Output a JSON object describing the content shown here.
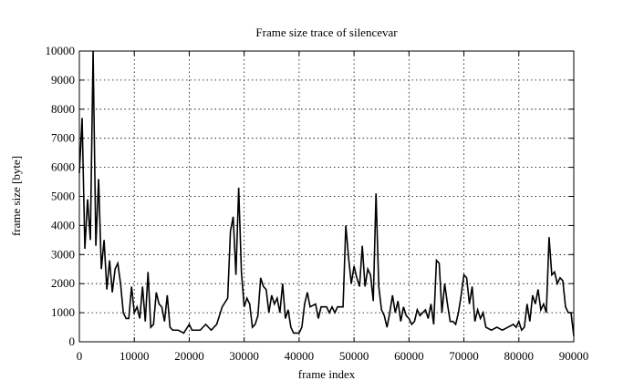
{
  "chart_data": {
    "type": "line",
    "title": "Frame size trace of silencevar",
    "x_label": "frame index",
    "y_label": "frame size [byte]",
    "x": [
      0,
      500,
      1000,
      1500,
      2000,
      2500,
      3000,
      3500,
      4000,
      4500,
      5000,
      5500,
      6000,
      6500,
      7000,
      7500,
      8000,
      8500,
      9000,
      9500,
      10000,
      10500,
      11000,
      11500,
      12000,
      12500,
      13000,
      13500,
      14000,
      14500,
      15000,
      15500,
      16000,
      16500,
      17000,
      18000,
      19000,
      20000,
      20500,
      21000,
      22000,
      23000,
      24000,
      25000,
      26000,
      27000,
      27500,
      28000,
      28500,
      29000,
      29500,
      30000,
      30500,
      31000,
      31500,
      32000,
      32500,
      33000,
      33500,
      34000,
      34500,
      35000,
      35500,
      36000,
      36500,
      37000,
      37500,
      38000,
      38500,
      39000,
      40000,
      40500,
      41000,
      41500,
      42000,
      43000,
      43500,
      44000,
      45000,
      45500,
      46000,
      46500,
      47000,
      48000,
      48500,
      49000,
      49500,
      50000,
      50500,
      51000,
      51500,
      52000,
      52500,
      53000,
      53500,
      54000,
      54500,
      55000,
      55500,
      56000,
      56500,
      57000,
      57500,
      58000,
      58500,
      59000,
      59500,
      60000,
      60500,
      61000,
      61500,
      62000,
      62500,
      63000,
      63500,
      64000,
      64500,
      65000,
      65500,
      66000,
      66500,
      67000,
      67500,
      68000,
      68500,
      69000,
      69500,
      70000,
      70500,
      71000,
      71500,
      72000,
      72500,
      73000,
      73500,
      74000,
      75000,
      76000,
      77000,
      78000,
      79000,
      79500,
      80000,
      80500,
      81000,
      81500,
      82000,
      82500,
      83000,
      83500,
      84000,
      84500,
      85000,
      85500,
      86000,
      86500,
      87000,
      87500,
      88000,
      88500,
      89000,
      89500,
      90000
    ],
    "series": [
      {
        "name": "silencevar",
        "color": "#000000",
        "values": [
          5800,
          7700,
          3200,
          4900,
          3500,
          10000,
          3300,
          5600,
          2500,
          3500,
          1800,
          2800,
          1700,
          2500,
          2700,
          2000,
          1000,
          800,
          800,
          1900,
          1000,
          1200,
          800,
          1900,
          700,
          2400,
          500,
          600,
          1700,
          1300,
          1200,
          700,
          1600,
          500,
          400,
          400,
          300,
          600,
          400,
          400,
          400,
          600,
          400,
          600,
          1200,
          1500,
          3800,
          4300,
          2300,
          5300,
          2400,
          1200,
          1500,
          1300,
          500,
          600,
          900,
          2200,
          1900,
          1800,
          1000,
          1600,
          1300,
          1500,
          1000,
          2000,
          800,
          1100,
          500,
          300,
          300,
          500,
          1300,
          1700,
          1200,
          1300,
          800,
          1200,
          1200,
          1000,
          1200,
          1000,
          1200,
          1200,
          4000,
          2900,
          2000,
          2600,
          2200,
          1900,
          3300,
          1900,
          2500,
          2300,
          1400,
          5100,
          1900,
          1100,
          900,
          500,
          1000,
          1600,
          1000,
          1400,
          700,
          1200,
          900,
          800,
          600,
          700,
          1100,
          900,
          1000,
          1100,
          800,
          1300,
          600,
          2800,
          2700,
          1000,
          2000,
          1300,
          700,
          700,
          600,
          1000,
          1600,
          2300,
          2200,
          1300,
          1900,
          700,
          1100,
          800,
          1000,
          500,
          400,
          500,
          400,
          500,
          600,
          500,
          700,
          400,
          500,
          1300,
          700,
          1600,
          1300,
          1800,
          1100,
          1300,
          1000,
          3600,
          2300,
          2400,
          2000,
          2200,
          2100,
          1200,
          1000,
          1000,
          200
        ]
      }
    ],
    "xlim": [
      0,
      90000
    ],
    "xticks": [
      0,
      10000,
      20000,
      30000,
      40000,
      50000,
      60000,
      70000,
      80000,
      90000
    ],
    "ylim": [
      0,
      10000
    ],
    "yticks": [
      0,
      1000,
      2000,
      3000,
      4000,
      5000,
      6000,
      7000,
      8000,
      9000,
      10000
    ],
    "grid": true
  }
}
